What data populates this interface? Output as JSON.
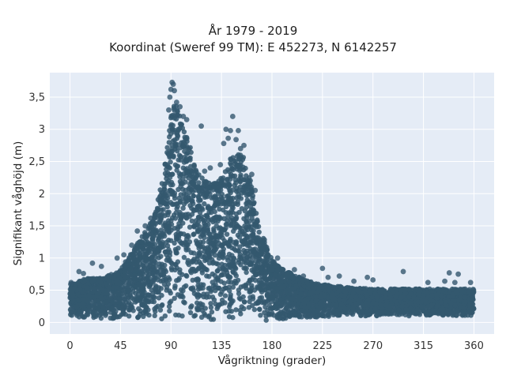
{
  "chart_data": {
    "type": "scatter",
    "title": [
      "År 1979 - 2019",
      "Koordinat (Sweref 99 TM): E 452273, N 6142257"
    ],
    "xlabel": "Vågriktning (grader)",
    "ylabel": "Signifikant våghöjd (m)",
    "xlim": [
      -18,
      378
    ],
    "ylim": [
      -0.18,
      3.88
    ],
    "xticks": [
      0,
      45,
      90,
      135,
      180,
      225,
      270,
      315,
      360
    ],
    "xtick_labels": [
      "0",
      "45",
      "90",
      "135",
      "180",
      "225",
      "270",
      "315",
      "360"
    ],
    "yticks": [
      0,
      0.5,
      1,
      1.5,
      2,
      2.5,
      3,
      3.5
    ],
    "ytick_labels": [
      "0",
      "0,5",
      "1",
      "1,5",
      "2",
      "2,5",
      "3",
      "3,5"
    ],
    "grid": true,
    "marker_color": "#34586f",
    "plot_background": "#e5ecf6",
    "envelope": {
      "direction": [
        0,
        15,
        30,
        45,
        55,
        65,
        75,
        82,
        87,
        90,
        93,
        96,
        100,
        105,
        110,
        115,
        120,
        125,
        130,
        135,
        140,
        145,
        150,
        155,
        158,
        162,
        166,
        170,
        175,
        180,
        185,
        190,
        200,
        210,
        220,
        230,
        240,
        250,
        260,
        270,
        280,
        290,
        300,
        310,
        320,
        330,
        340,
        350,
        360
      ],
      "upper_height": [
        0.6,
        0.68,
        0.7,
        0.82,
        1.1,
        1.35,
        1.65,
        2.2,
        2.8,
        3.2,
        3.45,
        3.3,
        3.1,
        2.85,
        2.55,
        2.35,
        2.22,
        2.15,
        2.2,
        2.3,
        2.45,
        2.6,
        2.65,
        2.6,
        2.45,
        2.1,
        1.7,
        1.45,
        1.2,
        0.98,
        0.88,
        0.82,
        0.74,
        0.66,
        0.6,
        0.58,
        0.56,
        0.54,
        0.53,
        0.52,
        0.52,
        0.52,
        0.52,
        0.52,
        0.52,
        0.52,
        0.52,
        0.52,
        0.52
      ],
      "lower_height": [
        0.08,
        0.07,
        0.06,
        0.05,
        0.04,
        0.04,
        0.03,
        0.03,
        0.03,
        0.03,
        0.03,
        0.03,
        0.03,
        0.03,
        0.03,
        0.03,
        0.03,
        0.03,
        0.03,
        0.03,
        0.03,
        0.03,
        0.03,
        0.03,
        0.03,
        0.03,
        0.03,
        0.03,
        0.02,
        0.02,
        0.03,
        0.04,
        0.06,
        0.07,
        0.08,
        0.09,
        0.1,
        0.1,
        0.1,
        0.1,
        0.1,
        0.1,
        0.1,
        0.1,
        0.1,
        0.1,
        0.1,
        0.1,
        0.1
      ]
    },
    "outliers": [
      {
        "x": 91,
        "y": 3.73
      },
      {
        "x": 92,
        "y": 3.7
      },
      {
        "x": 90,
        "y": 3.62
      },
      {
        "x": 93,
        "y": 3.6
      },
      {
        "x": 95,
        "y": 3.42
      },
      {
        "x": 89,
        "y": 3.5
      },
      {
        "x": 98,
        "y": 3.35
      },
      {
        "x": 88,
        "y": 3.3
      },
      {
        "x": 104,
        "y": 3.15
      },
      {
        "x": 101,
        "y": 3.2
      },
      {
        "x": 117,
        "y": 3.05
      },
      {
        "x": 145,
        "y": 3.2
      },
      {
        "x": 139,
        "y": 3.0
      },
      {
        "x": 143,
        "y": 2.98
      },
      {
        "x": 150,
        "y": 2.98
      },
      {
        "x": 141,
        "y": 2.86
      },
      {
        "x": 148,
        "y": 2.84
      },
      {
        "x": 155,
        "y": 2.75
      },
      {
        "x": 152,
        "y": 2.7
      },
      {
        "x": 137,
        "y": 2.78
      },
      {
        "x": 134,
        "y": 2.45
      },
      {
        "x": 162,
        "y": 2.3
      },
      {
        "x": 165,
        "y": 2.05
      },
      {
        "x": 120,
        "y": 2.35
      },
      {
        "x": 125,
        "y": 2.4
      },
      {
        "x": 20,
        "y": 0.92
      },
      {
        "x": 8,
        "y": 0.79
      },
      {
        "x": 28,
        "y": 0.87
      },
      {
        "x": 42,
        "y": 1.0
      },
      {
        "x": 48,
        "y": 1.05
      },
      {
        "x": 55,
        "y": 1.2
      },
      {
        "x": 60,
        "y": 1.42
      },
      {
        "x": 67,
        "y": 1.5
      },
      {
        "x": 72,
        "y": 1.62
      },
      {
        "x": 185,
        "y": 1.0
      },
      {
        "x": 200,
        "y": 0.82
      },
      {
        "x": 208,
        "y": 0.72
      },
      {
        "x": 225,
        "y": 0.84
      },
      {
        "x": 230,
        "y": 0.7
      },
      {
        "x": 240,
        "y": 0.72
      },
      {
        "x": 253,
        "y": 0.64
      },
      {
        "x": 265,
        "y": 0.7
      },
      {
        "x": 270,
        "y": 0.66
      },
      {
        "x": 297,
        "y": 0.79
      },
      {
        "x": 319,
        "y": 0.62
      },
      {
        "x": 334,
        "y": 0.64
      },
      {
        "x": 338,
        "y": 0.77
      },
      {
        "x": 346,
        "y": 0.75
      },
      {
        "x": 343,
        "y": 0.62
      },
      {
        "x": 357,
        "y": 0.62
      },
      {
        "x": 1,
        "y": 0.62
      },
      {
        "x": 12,
        "y": 0.76
      }
    ]
  }
}
